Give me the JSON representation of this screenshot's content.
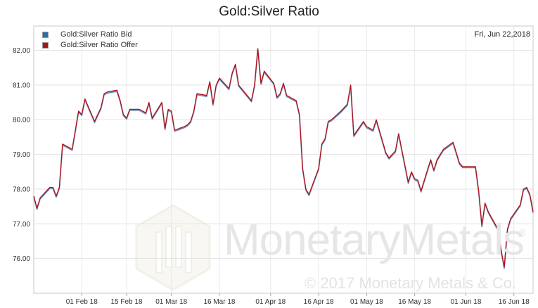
{
  "chart_data": {
    "type": "line",
    "title": "Gold:Silver Ratio",
    "date_label": "Fri, Jun 22,2018",
    "legend_position": "top-left",
    "grid": true,
    "ylim": [
      75.0,
      82.7
    ],
    "y_ticks": [
      "76.00",
      "77.00",
      "78.00",
      "79.00",
      "80.00",
      "81.00",
      "82.00"
    ],
    "x_ticks": [
      "01 Feb 18",
      "15 Feb 18",
      "01 Mar 18",
      "16 Mar 18",
      "01 Apr 18",
      "16 Apr 18",
      "01 May 18",
      "16 May 18",
      "01 Jun 18",
      "16 Jun 18"
    ],
    "x_tick_dates": [
      "2018-02-01",
      "2018-02-15",
      "2018-03-01",
      "2018-03-16",
      "2018-04-01",
      "2018-04-16",
      "2018-05-01",
      "2018-05-16",
      "2018-06-01",
      "2018-06-16"
    ],
    "x_range": [
      "2018-01-17",
      "2018-06-22"
    ],
    "series": [
      {
        "name": "Gold:Silver Ratio Bid",
        "color": "#2a6fa8"
      },
      {
        "name": "Gold:Silver Ratio Offer",
        "color": "#b0101a"
      }
    ],
    "points": [
      [
        "2018-01-17",
        77.8
      ],
      [
        "2018-01-18",
        77.45
      ],
      [
        "2018-01-19",
        77.75
      ],
      [
        "2018-01-22",
        78.05
      ],
      [
        "2018-01-23",
        78.05
      ],
      [
        "2018-01-24",
        77.8
      ],
      [
        "2018-01-25",
        78.05
      ],
      [
        "2018-01-26",
        79.3
      ],
      [
        "2018-01-29",
        79.15
      ],
      [
        "2018-01-30",
        79.7
      ],
      [
        "2018-01-31",
        80.25
      ],
      [
        "2018-02-01",
        80.15
      ],
      [
        "2018-02-02",
        80.6
      ],
      [
        "2018-02-05",
        79.95
      ],
      [
        "2018-02-06",
        80.15
      ],
      [
        "2018-02-07",
        80.35
      ],
      [
        "2018-02-08",
        80.75
      ],
      [
        "2018-02-09",
        80.8
      ],
      [
        "2018-02-12",
        80.85
      ],
      [
        "2018-02-13",
        80.55
      ],
      [
        "2018-02-14",
        80.15
      ],
      [
        "2018-02-15",
        80.05
      ],
      [
        "2018-02-16",
        80.3
      ],
      [
        "2018-02-19",
        80.3
      ],
      [
        "2018-02-20",
        80.25
      ],
      [
        "2018-02-21",
        80.2
      ],
      [
        "2018-02-22",
        80.5
      ],
      [
        "2018-02-23",
        80.05
      ],
      [
        "2018-02-26",
        80.5
      ],
      [
        "2018-02-27",
        79.75
      ],
      [
        "2018-02-28",
        80.3
      ],
      [
        "2018-03-01",
        80.25
      ],
      [
        "2018-03-02",
        79.7
      ],
      [
        "2018-03-05",
        79.8
      ],
      [
        "2018-03-06",
        79.85
      ],
      [
        "2018-03-07",
        79.95
      ],
      [
        "2018-03-08",
        80.25
      ],
      [
        "2018-03-09",
        80.75
      ],
      [
        "2018-03-12",
        80.7
      ],
      [
        "2018-03-13",
        81.1
      ],
      [
        "2018-03-14",
        80.45
      ],
      [
        "2018-03-15",
        81.0
      ],
      [
        "2018-03-16",
        81.2
      ],
      [
        "2018-03-19",
        80.9
      ],
      [
        "2018-03-20",
        81.35
      ],
      [
        "2018-03-21",
        81.6
      ],
      [
        "2018-03-22",
        81.0
      ],
      [
        "2018-03-26",
        80.55
      ],
      [
        "2018-03-27",
        81.0
      ],
      [
        "2018-03-28",
        82.05
      ],
      [
        "2018-03-29",
        81.05
      ],
      [
        "2018-03-30",
        81.4
      ],
      [
        "2018-04-02",
        81.05
      ],
      [
        "2018-04-03",
        80.65
      ],
      [
        "2018-04-04",
        80.75
      ],
      [
        "2018-04-05",
        81.05
      ],
      [
        "2018-04-06",
        80.7
      ],
      [
        "2018-04-09",
        80.55
      ],
      [
        "2018-04-10",
        80.15
      ],
      [
        "2018-04-11",
        78.6
      ],
      [
        "2018-04-12",
        78.0
      ],
      [
        "2018-04-13",
        77.85
      ],
      [
        "2018-04-16",
        78.6
      ],
      [
        "2018-04-17",
        79.3
      ],
      [
        "2018-04-18",
        79.45
      ],
      [
        "2018-04-19",
        79.95
      ],
      [
        "2018-04-20",
        80.0
      ],
      [
        "2018-04-23",
        80.25
      ],
      [
        "2018-04-24",
        80.35
      ],
      [
        "2018-04-25",
        80.45
      ],
      [
        "2018-04-26",
        81.0
      ],
      [
        "2018-04-27",
        79.55
      ],
      [
        "2018-04-30",
        79.95
      ],
      [
        "2018-05-01",
        79.8
      ],
      [
        "2018-05-02",
        79.75
      ],
      [
        "2018-05-03",
        79.7
      ],
      [
        "2018-05-04",
        80.0
      ],
      [
        "2018-05-07",
        79.05
      ],
      [
        "2018-05-08",
        78.9
      ],
      [
        "2018-05-09",
        79.0
      ],
      [
        "2018-05-10",
        79.1
      ],
      [
        "2018-05-11",
        79.6
      ],
      [
        "2018-05-14",
        78.2
      ],
      [
        "2018-05-15",
        78.5
      ],
      [
        "2018-05-16",
        78.3
      ],
      [
        "2018-05-17",
        78.25
      ],
      [
        "2018-05-18",
        77.95
      ],
      [
        "2018-05-21",
        78.85
      ],
      [
        "2018-05-22",
        78.55
      ],
      [
        "2018-05-23",
        78.85
      ],
      [
        "2018-05-24",
        79.0
      ],
      [
        "2018-05-25",
        79.15
      ],
      [
        "2018-05-28",
        79.35
      ],
      [
        "2018-05-29",
        79.05
      ],
      [
        "2018-05-30",
        78.75
      ],
      [
        "2018-05-31",
        78.65
      ],
      [
        "2018-06-01",
        78.65
      ],
      [
        "2018-06-04",
        78.65
      ],
      [
        "2018-06-05",
        77.95
      ],
      [
        "2018-06-06",
        76.95
      ],
      [
        "2018-06-07",
        77.6
      ],
      [
        "2018-06-08",
        77.35
      ],
      [
        "2018-06-11",
        76.85
      ],
      [
        "2018-06-12",
        76.25
      ],
      [
        "2018-06-13",
        75.75
      ],
      [
        "2018-06-14",
        76.85
      ],
      [
        "2018-06-15",
        77.15
      ],
      [
        "2018-06-18",
        77.55
      ],
      [
        "2018-06-19",
        78.0
      ],
      [
        "2018-06-20",
        78.05
      ],
      [
        "2018-06-21",
        77.85
      ],
      [
        "2018-06-22",
        77.35
      ]
    ]
  },
  "watermark": {
    "brand": "MonetaryMetals",
    "reg": "®",
    "copyright": "© 2017 Monetary Metals & Co."
  }
}
